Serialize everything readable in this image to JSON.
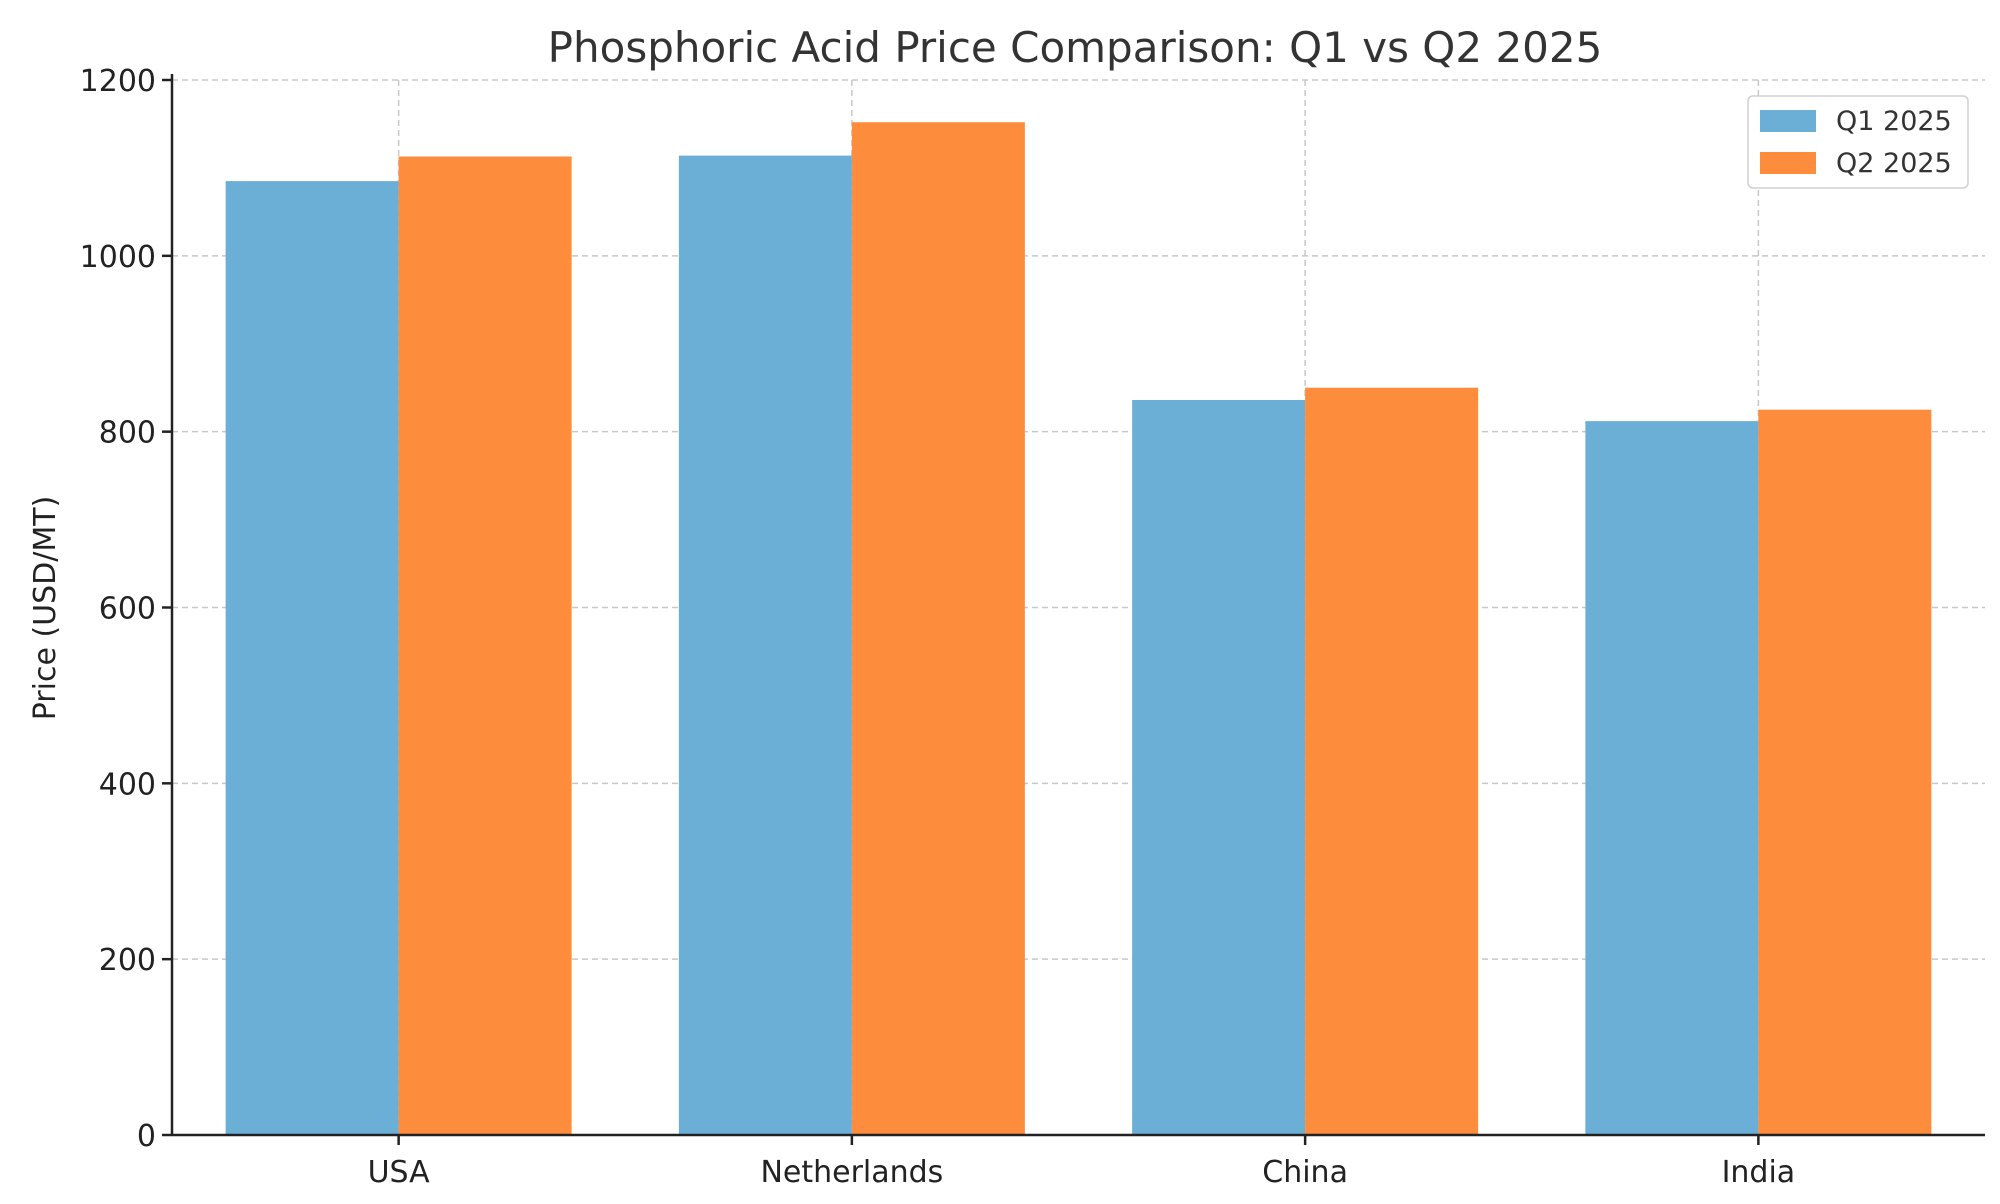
{
  "chart_data": {
    "type": "bar",
    "title": "Phosphoric Acid Price Comparison: Q1 vs Q2 2025",
    "xlabel": "",
    "ylabel": "Price (USD/MT)",
    "categories": [
      "USA",
      "Netherlands",
      "China",
      "India"
    ],
    "series": [
      {
        "name": "Q1 2025",
        "values": [
          1085,
          1114,
          836,
          812
        ],
        "color": "#6baed6"
      },
      {
        "name": "Q2 2025",
        "values": [
          1113,
          1152,
          850,
          825
        ],
        "color": "#fd8d3c"
      }
    ],
    "ylim": [
      0,
      1200
    ],
    "yticks": [
      0,
      200,
      400,
      600,
      800,
      1000,
      1200
    ],
    "grid": true,
    "legend_position": "top-right"
  }
}
